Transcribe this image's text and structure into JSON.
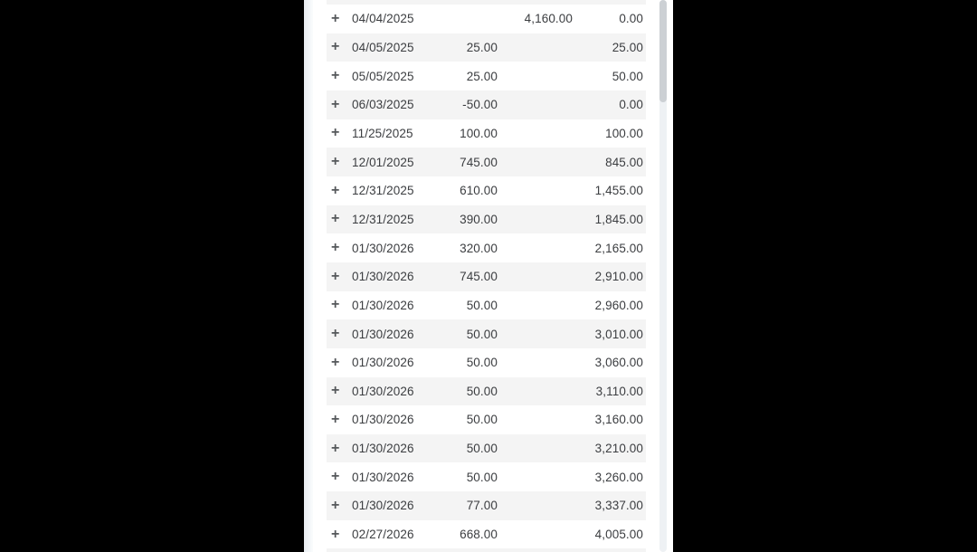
{
  "panel": {
    "description": "transaction-register-panel"
  },
  "colors": {
    "backdrop": "#000000",
    "panel_background": "#ffffff",
    "zebra_row": "#f4f4f4",
    "text": "#3b3d40",
    "plus_icon": "#55585b",
    "scrollbar_thumb": "#ccd0d4",
    "scrollbar_track": "#eef1f4"
  },
  "table": {
    "expand_icon": "+",
    "rows": [
      {
        "date": "04/04/2025",
        "amount1": "",
        "amount2": "4,160.00",
        "balance": "0.00"
      },
      {
        "date": "04/05/2025",
        "amount1": "25.00",
        "amount2": "",
        "balance": "25.00"
      },
      {
        "date": "05/05/2025",
        "amount1": "25.00",
        "amount2": "",
        "balance": "50.00"
      },
      {
        "date": "06/03/2025",
        "amount1": "-50.00",
        "amount2": "",
        "balance": "0.00"
      },
      {
        "date": "11/25/2025",
        "amount1": "100.00",
        "amount2": "",
        "balance": "100.00"
      },
      {
        "date": "12/01/2025",
        "amount1": "745.00",
        "amount2": "",
        "balance": "845.00"
      },
      {
        "date": "12/31/2025",
        "amount1": "610.00",
        "amount2": "",
        "balance": "1,455.00"
      },
      {
        "date": "12/31/2025",
        "amount1": "390.00",
        "amount2": "",
        "balance": "1,845.00"
      },
      {
        "date": "01/30/2026",
        "amount1": "320.00",
        "amount2": "",
        "balance": "2,165.00"
      },
      {
        "date": "01/30/2026",
        "amount1": "745.00",
        "amount2": "",
        "balance": "2,910.00"
      },
      {
        "date": "01/30/2026",
        "amount1": "50.00",
        "amount2": "",
        "balance": "2,960.00"
      },
      {
        "date": "01/30/2026",
        "amount1": "50.00",
        "amount2": "",
        "balance": "3,010.00"
      },
      {
        "date": "01/30/2026",
        "amount1": "50.00",
        "amount2": "",
        "balance": "3,060.00"
      },
      {
        "date": "01/30/2026",
        "amount1": "50.00",
        "amount2": "",
        "balance": "3,110.00"
      },
      {
        "date": "01/30/2026",
        "amount1": "50.00",
        "amount2": "",
        "balance": "3,160.00"
      },
      {
        "date": "01/30/2026",
        "amount1": "50.00",
        "amount2": "",
        "balance": "3,210.00"
      },
      {
        "date": "01/30/2026",
        "amount1": "50.00",
        "amount2": "",
        "balance": "3,260.00"
      },
      {
        "date": "01/30/2026",
        "amount1": "77.00",
        "amount2": "",
        "balance": "3,337.00"
      },
      {
        "date": "02/27/2026",
        "amount1": "668.00",
        "amount2": "",
        "balance": "4,005.00"
      }
    ]
  }
}
